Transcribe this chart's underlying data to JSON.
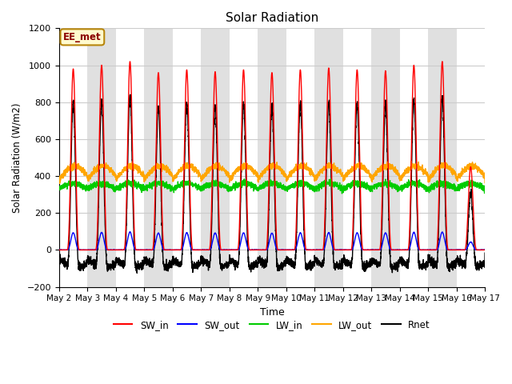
{
  "title": "Solar Radiation",
  "xlabel": "Time",
  "ylabel": "Solar Radiation (W/m2)",
  "ylim": [
    -200,
    1200
  ],
  "yticks": [
    -200,
    0,
    200,
    400,
    600,
    800,
    1000,
    1200
  ],
  "xlim": [
    0,
    15
  ],
  "xtick_labels": [
    "May 2",
    "May 3",
    "May 4",
    "May 5",
    "May 6",
    "May 7",
    "May 8",
    "May 9",
    "May 10",
    "May 11",
    "May 12",
    "May 13",
    "May 14",
    "May 15",
    "May 16",
    "May 17"
  ],
  "annotation_text": "EE_met",
  "annotation_color": "#8B0000",
  "annotation_bg": "#FFFACD",
  "annotation_border": "#B8860B",
  "line_colors": {
    "SW_in": "#FF0000",
    "SW_out": "#0000FF",
    "LW_in": "#00CC00",
    "LW_out": "#FFA500",
    "Rnet": "#000000"
  },
  "legend_labels": [
    "SW_in",
    "SW_out",
    "LW_in",
    "LW_out",
    "Rnet"
  ],
  "n_days": 15,
  "points_per_day": 288,
  "background_color": "#FFFFFF",
  "grid_color": "#CCCCCC",
  "band_color": "#E0E0E0",
  "sw_in_peaks": [
    980,
    1000,
    1020,
    960,
    975,
    965,
    975,
    960,
    975,
    985,
    975,
    970,
    1000,
    1020,
    450
  ],
  "lw_in_base": 330,
  "lw_out_base": 390,
  "night_rnet": -60
}
